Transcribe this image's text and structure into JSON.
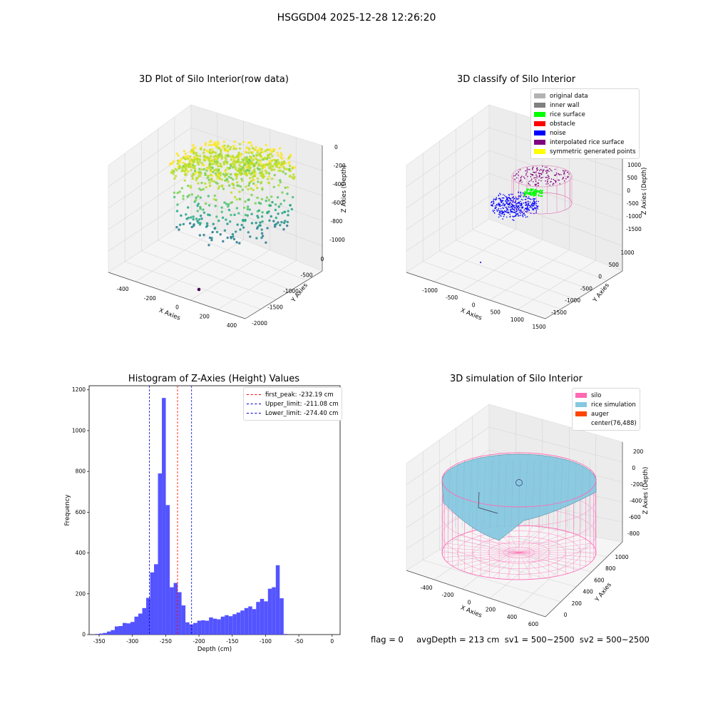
{
  "figure": {
    "suptitle": "HSGGD04 2025-12-28 12:26:20",
    "status_text": "flag = 0     avgDepth = 213 cm  sv1 = 500~2500  sv2 = 500~2500"
  },
  "colors": {
    "panel_grey": "#f2f2f2",
    "grid": "#d6d6d6",
    "hist_bar": "#4b4bff",
    "peak_line": "#ff0000",
    "limit_line": "#0000cc",
    "silo": "#ff69b4",
    "rice_sim": "#87c8e0"
  },
  "panels": {
    "raw": {
      "title": "3D Plot of Silo Interior(row data)",
      "xlabel": "X Axies",
      "ylabel": "Y Axies",
      "zlabel": "Z Axies (Depth)",
      "xticks": [
        "-400",
        "-200",
        "0",
        "200",
        "400"
      ],
      "yticks": [
        "0",
        "-500",
        "-1000",
        "-1500",
        "-2000"
      ],
      "zticks": [
        "0",
        "-200",
        "-400",
        "-600",
        "-800",
        "-1000"
      ]
    },
    "classify": {
      "title": "3D classify of Silo Interior",
      "xlabel": "X Axies",
      "ylabel": "Y Axies",
      "zlabel": "Z Axies (Depth)",
      "xticks": [
        "-1000",
        "-500",
        "0",
        "500",
        "1000",
        "1500"
      ],
      "yticks": [
        "1000",
        "500",
        "0",
        "-500",
        "-1000",
        "-1500"
      ],
      "zticks": [
        "1000",
        "500",
        "0",
        "-500",
        "-1000",
        "-1500"
      ],
      "legend": [
        {
          "label": "original data",
          "color": "#b3b3b3"
        },
        {
          "label": "inner wall",
          "color": "#808080"
        },
        {
          "label": "rice surface",
          "color": "#00ff00"
        },
        {
          "label": "obstacle",
          "color": "#ff0000"
        },
        {
          "label": "noise",
          "color": "#0000ff"
        },
        {
          "label": "interpolated rice surface",
          "color": "#800080"
        },
        {
          "label": "symmetric generated points",
          "color": "#ffff00"
        }
      ]
    },
    "simulation": {
      "title": "3D simulation of Silo Interior",
      "xlabel": "X Axies",
      "ylabel": "Y Axies",
      "zlabel": "Z Axies (Depth)",
      "xticks": [
        "-400",
        "-200",
        "0",
        "200",
        "400",
        "600"
      ],
      "yticks": [
        "0",
        "200",
        "400",
        "600",
        "800",
        "1000"
      ],
      "zticks": [
        "200",
        "0",
        "-200",
        "-400",
        "-600",
        "-800"
      ],
      "legend": [
        {
          "label": "silo",
          "color": "#ff69b4"
        },
        {
          "label": "rice simulation",
          "color": "#87c8e0"
        },
        {
          "label": "auger",
          "color": "#ff4500"
        },
        {
          "label": "center(76,488)",
          "color": ""
        }
      ]
    }
  },
  "chart_data": [
    {
      "type": "scatter",
      "title": "3D Plot of Silo Interior(row data)",
      "xlabel": "X Axies",
      "ylabel": "Y Axies",
      "zlabel": "Z Axies (Depth)",
      "xlim": [
        -450,
        450
      ],
      "ylim": [
        -2000,
        100
      ],
      "zlim": [
        -1000,
        50
      ]
    },
    {
      "type": "scatter",
      "title": "3D classify of Silo Interior",
      "xlabel": "X Axies",
      "ylabel": "Y Axies",
      "zlabel": "Z Axies (Depth)",
      "xlim": [
        -1200,
        1600
      ],
      "ylim": [
        -1600,
        1100
      ],
      "zlim": [
        -1600,
        1000
      ]
    },
    {
      "type": "bar",
      "title": "Histogram of Z-Axies (Height) Values",
      "xlabel": "Depth (cm)",
      "ylabel": "Frequency",
      "xlim": [
        -365,
        12
      ],
      "ylim": [
        0,
        1220
      ],
      "xticks": [
        -350,
        -300,
        -250,
        -200,
        -150,
        -100,
        -50,
        0
      ],
      "yticks": [
        0,
        200,
        400,
        600,
        800,
        1000,
        1200
      ],
      "bin_start": -356,
      "bin_width": 5.9,
      "values": [
        3,
        5,
        8,
        15,
        22,
        40,
        42,
        57,
        55,
        62,
        88,
        103,
        130,
        180,
        305,
        345,
        790,
        1160,
        635,
        232,
        253,
        208,
        143,
        60,
        50,
        57,
        68,
        70,
        68,
        84,
        78,
        75,
        88,
        95,
        90,
        100,
        108,
        118,
        130,
        138,
        125,
        160,
        175,
        163,
        225,
        232,
        340,
        178,
        3
      ],
      "vlines": [
        {
          "label": "first_peak: -232.19 cm",
          "x": -232.19,
          "color": "#ff0000"
        },
        {
          "label": "Upper_limit: -211.08 cm",
          "x": -211.08,
          "color": "#0000cc"
        },
        {
          "label": "Lower_limit: -274.40 cm",
          "x": -274.4,
          "color": "#0000cc"
        }
      ]
    },
    {
      "type": "scatter",
      "title": "3D simulation of Silo Interior",
      "xlabel": "X Axies",
      "ylabel": "Y Axies",
      "zlabel": "Z Axies (Depth)",
      "xlim": [
        -500,
        700
      ],
      "ylim": [
        -50,
        1050
      ],
      "zlim": [
        -900,
        300
      ],
      "center": [
        76,
        488
      ]
    }
  ]
}
